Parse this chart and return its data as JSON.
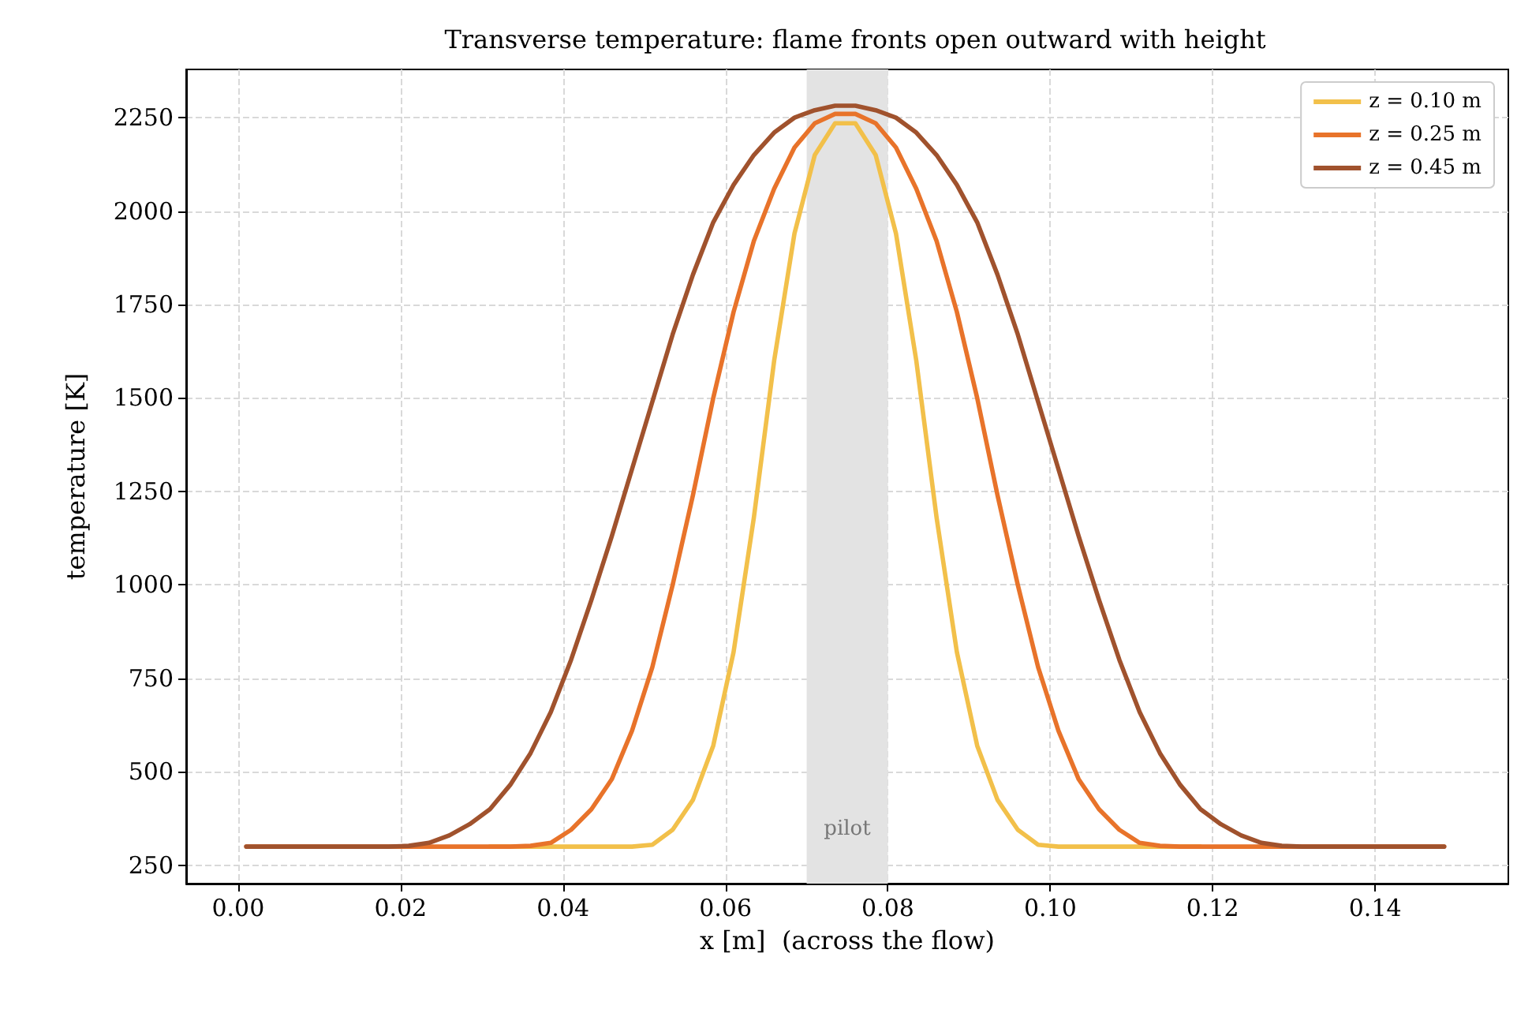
{
  "chart_data": {
    "type": "line",
    "title": "Transverse temperature: flame fronts open outward with height",
    "xlabel": "x [m]  (across the flow)",
    "ylabel": "temperature [K]",
    "x": [
      0.001,
      0.0035,
      0.006,
      0.0085,
      0.011,
      0.0135,
      0.016,
      0.0185,
      0.021,
      0.0235,
      0.026,
      0.0285,
      0.031,
      0.0335,
      0.036,
      0.0385,
      0.041,
      0.0435,
      0.046,
      0.0485,
      0.051,
      0.0535,
      0.056,
      0.0585,
      0.061,
      0.0635,
      0.066,
      0.0685,
      0.071,
      0.0735,
      0.076,
      0.0785,
      0.081,
      0.0835,
      0.086,
      0.0885,
      0.091,
      0.0935,
      0.096,
      0.0985,
      0.101,
      0.1035,
      0.106,
      0.1085,
      0.111,
      0.1135,
      0.116,
      0.1185,
      0.121,
      0.1235,
      0.126,
      0.1285,
      0.131,
      0.1335,
      0.136,
      0.1385,
      0.141,
      0.1435,
      0.146,
      0.1485
    ],
    "series": [
      {
        "name": "z = 0.10 m",
        "color": "#f2c04a",
        "values": [
          null,
          null,
          null,
          null,
          null,
          null,
          null,
          null,
          null,
          null,
          null,
          null,
          300,
          300,
          300,
          300,
          300,
          300,
          300,
          300,
          305,
          345,
          425,
          570,
          820,
          1180,
          1600,
          1940,
          2150,
          2235,
          2235,
          2150,
          1940,
          1600,
          1180,
          820,
          570,
          425,
          345,
          305,
          300,
          300,
          300,
          300,
          300,
          300,
          300,
          300,
          null,
          null,
          null,
          null,
          null,
          null,
          null,
          null,
          null,
          null,
          null,
          null
        ]
      },
      {
        "name": "z = 0.25 m",
        "color": "#e8732a",
        "values": [
          300,
          300,
          300,
          300,
          300,
          300,
          300,
          300,
          300,
          300,
          300,
          300,
          300,
          300,
          302,
          310,
          345,
          400,
          480,
          610,
          780,
          1000,
          1240,
          1500,
          1730,
          1920,
          2060,
          2170,
          2235,
          2260,
          2260,
          2235,
          2170,
          2060,
          1920,
          1730,
          1500,
          1240,
          1000,
          780,
          610,
          480,
          400,
          345,
          310,
          302,
          300,
          300,
          300,
          300,
          300,
          300,
          300,
          300,
          300,
          300,
          300,
          300,
          300,
          300
        ]
      },
      {
        "name": "z = 0.45 m",
        "color": "#a0522d",
        "values": [
          300,
          300,
          300,
          300,
          300,
          300,
          300,
          300,
          302,
          310,
          330,
          360,
          400,
          465,
          550,
          660,
          800,
          960,
          1130,
          1310,
          1490,
          1670,
          1830,
          1970,
          2070,
          2150,
          2210,
          2250,
          2270,
          2282,
          2282,
          2270,
          2250,
          2210,
          2150,
          2070,
          1970,
          1830,
          1670,
          1490,
          1310,
          1130,
          960,
          800,
          660,
          550,
          465,
          400,
          360,
          330,
          310,
          302,
          300,
          300,
          300,
          300,
          300,
          300,
          300,
          300
        ]
      }
    ],
    "xlim": [
      -0.0064,
      0.1564
    ],
    "ylim": [
      201,
      2379
    ],
    "xticks": [
      {
        "value": 0,
        "label": "0.00"
      },
      {
        "value": 0.02,
        "label": "0.02"
      },
      {
        "value": 0.04,
        "label": "0.04"
      },
      {
        "value": 0.06,
        "label": "0.06"
      },
      {
        "value": 0.08,
        "label": "0.08"
      },
      {
        "value": 0.1,
        "label": "0.10"
      },
      {
        "value": 0.12,
        "label": "0.12"
      },
      {
        "value": 0.14,
        "label": "0.14"
      }
    ],
    "yticks": [
      250,
      500,
      750,
      1000,
      1250,
      1500,
      1750,
      2000,
      2250
    ],
    "bands": [
      {
        "axis": "x",
        "from": 0.07,
        "to": 0.08,
        "label": "pilot",
        "color": "#e3e3e3"
      }
    ],
    "grid": true,
    "legend": "top right",
    "line_style": "solid",
    "marker": "none"
  }
}
